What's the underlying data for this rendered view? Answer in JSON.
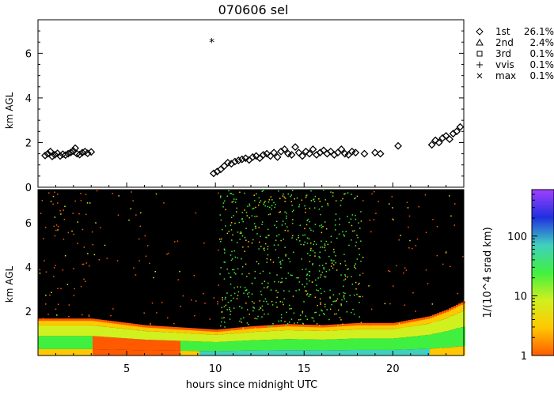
{
  "chart_data": [
    {
      "type": "scatter",
      "title": "070606 sel",
      "ylabel": "km AGL",
      "xlim": [
        0,
        24
      ],
      "ylim": [
        0,
        7.5
      ],
      "yticks": [
        "0",
        "2",
        "4",
        "6"
      ],
      "legend_position": "right",
      "legend": [
        {
          "symbol": "diamond",
          "name": "1st",
          "percent": "26.1%"
        },
        {
          "symbol": "triangle",
          "name": "2nd",
          "percent": "2.4%"
        },
        {
          "symbol": "square",
          "name": "3rd",
          "percent": "0.1%"
        },
        {
          "symbol": "plus",
          "name": "vvis",
          "percent": "0.1%"
        },
        {
          "symbol": "x",
          "name": "max",
          "percent": "0.1%"
        }
      ],
      "series": [
        {
          "name": "1st",
          "points": [
            [
              0.4,
              1.42
            ],
            [
              0.55,
              1.5
            ],
            [
              0.7,
              1.6
            ],
            [
              0.8,
              1.38
            ],
            [
              0.95,
              1.45
            ],
            [
              1.1,
              1.52
            ],
            [
              1.25,
              1.4
            ],
            [
              1.4,
              1.48
            ],
            [
              1.55,
              1.44
            ],
            [
              1.7,
              1.5
            ],
            [
              1.85,
              1.56
            ],
            [
              2.0,
              1.62
            ],
            [
              2.1,
              1.75
            ],
            [
              2.2,
              1.5
            ],
            [
              2.35,
              1.46
            ],
            [
              2.5,
              1.55
            ],
            [
              2.65,
              1.6
            ],
            [
              2.8,
              1.52
            ],
            [
              3.0,
              1.58
            ],
            [
              9.9,
              0.62
            ],
            [
              10.1,
              0.7
            ],
            [
              10.3,
              0.8
            ],
            [
              10.5,
              0.95
            ],
            [
              10.7,
              1.1
            ],
            [
              10.9,
              1.05
            ],
            [
              11.1,
              1.15
            ],
            [
              11.3,
              1.2
            ],
            [
              11.5,
              1.25
            ],
            [
              11.7,
              1.3
            ],
            [
              11.9,
              1.22
            ],
            [
              12.1,
              1.35
            ],
            [
              12.3,
              1.4
            ],
            [
              12.5,
              1.3
            ],
            [
              12.7,
              1.45
            ],
            [
              12.9,
              1.5
            ],
            [
              13.1,
              1.4
            ],
            [
              13.3,
              1.55
            ],
            [
              13.5,
              1.35
            ],
            [
              13.7,
              1.6
            ],
            [
              13.9,
              1.7
            ],
            [
              14.1,
              1.5
            ],
            [
              14.3,
              1.45
            ],
            [
              14.5,
              1.8
            ],
            [
              14.7,
              1.55
            ],
            [
              14.9,
              1.4
            ],
            [
              15.1,
              1.6
            ],
            [
              15.3,
              1.5
            ],
            [
              15.5,
              1.7
            ],
            [
              15.7,
              1.45
            ],
            [
              15.9,
              1.55
            ],
            [
              16.1,
              1.65
            ],
            [
              16.3,
              1.5
            ],
            [
              16.5,
              1.6
            ],
            [
              16.7,
              1.45
            ],
            [
              16.9,
              1.55
            ],
            [
              17.1,
              1.7
            ],
            [
              17.3,
              1.5
            ],
            [
              17.5,
              1.45
            ],
            [
              17.7,
              1.6
            ],
            [
              17.9,
              1.55
            ],
            [
              18.4,
              1.5
            ],
            [
              19.0,
              1.55
            ],
            [
              19.3,
              1.5
            ],
            [
              20.3,
              1.85
            ],
            [
              22.2,
              1.9
            ],
            [
              22.4,
              2.1
            ],
            [
              22.6,
              2.0
            ],
            [
              22.8,
              2.2
            ],
            [
              23.0,
              2.3
            ],
            [
              23.2,
              2.15
            ],
            [
              23.4,
              2.4
            ],
            [
              23.6,
              2.5
            ],
            [
              23.8,
              2.7
            ]
          ]
        },
        {
          "name": "max",
          "points": [
            [
              9.8,
              6.5
            ]
          ]
        }
      ]
    },
    {
      "type": "heatmap",
      "ylabel": "km AGL",
      "xlabel": "hours since midnight UTC",
      "xlim": [
        0,
        24
      ],
      "ylim": [
        0,
        7.5
      ],
      "xticks": [
        "5",
        "10",
        "15",
        "20"
      ],
      "yticks": [
        "2",
        "4",
        "6"
      ],
      "colorbar": {
        "label": "1/(10^4 srad km)",
        "scale": "log",
        "range": [
          1,
          600
        ],
        "ticks": [
          "1",
          "10",
          "100"
        ],
        "colors": [
          "#ff5a00",
          "#ffc800",
          "#d0f020",
          "#40f040",
          "#40d0c0",
          "#2030e0",
          "#a040ff"
        ]
      },
      "boundary_layer_top_km": [
        [
          0,
          1.6
        ],
        [
          3,
          1.6
        ],
        [
          6,
          1.3
        ],
        [
          8,
          1.2
        ],
        [
          10,
          1.1
        ],
        [
          12,
          1.25
        ],
        [
          14,
          1.35
        ],
        [
          16,
          1.3
        ],
        [
          18,
          1.4
        ],
        [
          20,
          1.4
        ],
        [
          22,
          1.7
        ],
        [
          23,
          2.0
        ],
        [
          24,
          2.4
        ]
      ],
      "notable_features": [
        {
          "x_range": [
            10.2,
            18.2
          ],
          "description": "scattered green returns through full column"
        }
      ]
    }
  ]
}
